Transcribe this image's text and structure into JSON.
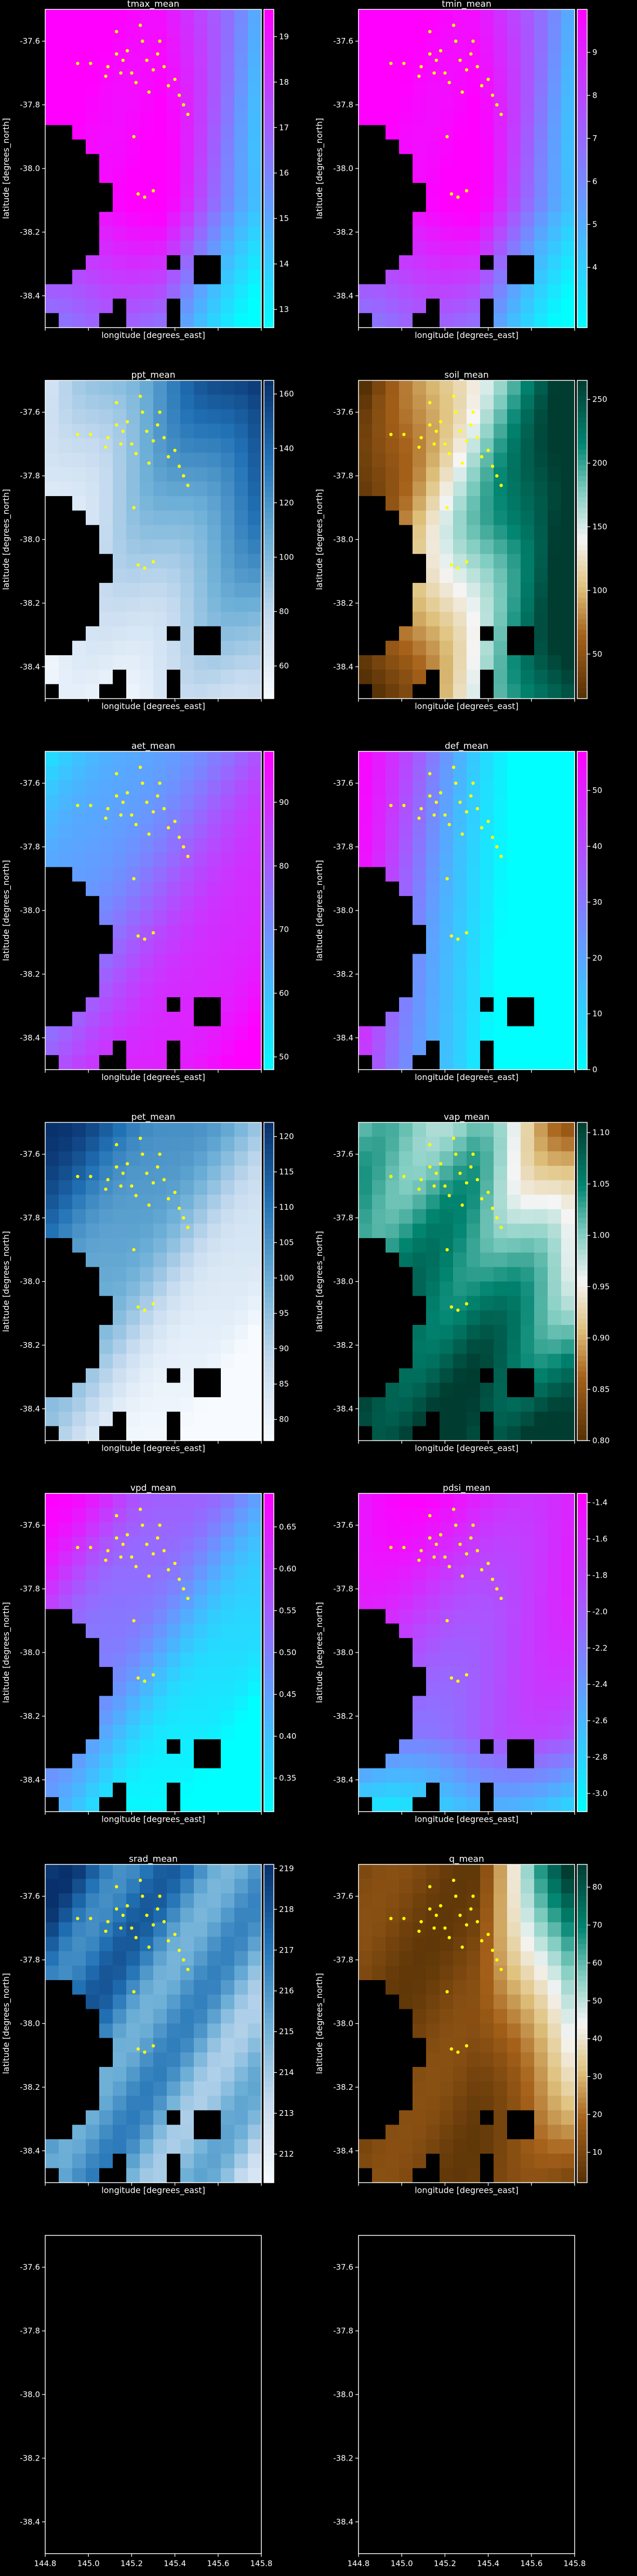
{
  "chart_data": {
    "type": "heatmap",
    "panel_rows": 7,
    "panel_cols": 2,
    "xlim": [
      144.8,
      145.8
    ],
    "ylim": [
      -38.5,
      -37.5
    ],
    "xticks": [
      "144.8",
      "145.0",
      "145.2",
      "145.4",
      "145.6",
      "145.8"
    ],
    "yticks": [
      "-37.6",
      "-37.8",
      "-38.0",
      "-38.2",
      "-38.4"
    ],
    "xlabel": "longitude [degrees_east]",
    "ylabel": "latitude [degrees_north]",
    "marker_color": "#ffff00",
    "nodata_color": "#000000",
    "panels": [
      {
        "title": "tmax_mean",
        "cmap": "cool",
        "vmin": 12.6,
        "vmax": 19.6,
        "cbar_ticks": [
          "13",
          "14",
          "15",
          "16",
          "17",
          "18",
          "19"
        ],
        "tick_values": [
          13,
          14,
          15,
          16,
          17,
          18,
          19
        ],
        "pattern": "coastal_gradient",
        "ylabel": true,
        "xlabel": true
      },
      {
        "title": "tmin_mean",
        "cmap": "cool",
        "vmin": 2.6,
        "vmax": 10.0,
        "cbar_ticks": [
          "4",
          "5",
          "6",
          "7",
          "8",
          "9"
        ],
        "tick_values": [
          4,
          5,
          6,
          7,
          8,
          9
        ],
        "pattern": "coastal_gradient",
        "ylabel": true,
        "xlabel": true
      },
      {
        "title": "ppt_mean",
        "cmap": "Blues",
        "vmin": 48,
        "vmax": 165,
        "cbar_ticks": [
          "60",
          "80",
          "100",
          "120",
          "140",
          "160"
        ],
        "tick_values": [
          60,
          80,
          100,
          120,
          140,
          160
        ],
        "pattern": "northeast_high",
        "ylabel": true,
        "xlabel": true
      },
      {
        "title": "soil_mean",
        "cmap": "BrBG",
        "vmin": 15,
        "vmax": 265,
        "cbar_ticks": [
          "50",
          "100",
          "150",
          "200",
          "250"
        ],
        "tick_values": [
          50,
          100,
          150,
          200,
          250
        ],
        "pattern": "east_high_blob",
        "ylabel": true,
        "xlabel": true
      },
      {
        "title": "aet_mean",
        "cmap": "cool",
        "vmin": 48,
        "vmax": 98,
        "cbar_ticks": [
          "50",
          "60",
          "70",
          "80",
          "90"
        ],
        "tick_values": [
          50,
          60,
          70,
          80,
          90
        ],
        "pattern": "southeast_high",
        "ylabel": true,
        "xlabel": true
      },
      {
        "title": "def_mean",
        "cmap": "cool",
        "vmin": 0,
        "vmax": 57,
        "cbar_ticks": [
          "0",
          "10",
          "20",
          "30",
          "40",
          "50"
        ],
        "tick_values": [
          0,
          10,
          20,
          30,
          40,
          50
        ],
        "pattern": "west_high",
        "ylabel": true,
        "xlabel": true
      },
      {
        "title": "pet_mean",
        "cmap": "Blues",
        "vmin": 77,
        "vmax": 122,
        "cbar_ticks": [
          "80",
          "85",
          "90",
          "95",
          "100",
          "105",
          "110",
          "115",
          "120"
        ],
        "tick_values": [
          80,
          85,
          90,
          95,
          100,
          105,
          110,
          115,
          120
        ],
        "pattern": "northwest_high",
        "ylabel": true,
        "xlabel": true
      },
      {
        "title": "vap_mean",
        "cmap": "BrBG",
        "vmin": 0.8,
        "vmax": 1.11,
        "cbar_ticks": [
          "0.80",
          "0.85",
          "0.90",
          "0.95",
          "1.00",
          "1.05",
          "1.10"
        ],
        "tick_values": [
          0.8,
          0.85,
          0.9,
          0.95,
          1.0,
          1.05,
          1.1
        ],
        "pattern": "vap",
        "ylabel": true,
        "xlabel": true
      },
      {
        "title": "vpd_mean",
        "cmap": "cool",
        "vmin": 0.31,
        "vmax": 0.69,
        "cbar_ticks": [
          "0.35",
          "0.40",
          "0.45",
          "0.50",
          "0.55",
          "0.60",
          "0.65"
        ],
        "tick_values": [
          0.35,
          0.4,
          0.45,
          0.5,
          0.55,
          0.6,
          0.65
        ],
        "pattern": "northwest_high",
        "ylabel": true,
        "xlabel": true
      },
      {
        "title": "pdsi_mean",
        "cmap": "cool",
        "vmin": -3.1,
        "vmax": -1.35,
        "cbar_ticks": [
          "-1.4",
          "-1.6",
          "-1.8",
          "-2.0",
          "-2.2",
          "-2.4",
          "-2.6",
          "-2.8",
          "-3.0"
        ],
        "tick_values": [
          -1.4,
          -1.6,
          -1.8,
          -2.0,
          -2.2,
          -2.4,
          -2.6,
          -2.8,
          -3.0
        ],
        "pattern": "pdsi",
        "ylabel": true,
        "xlabel": true
      },
      {
        "title": "srad_mean",
        "cmap": "Blues",
        "vmin": 211.3,
        "vmax": 219.1,
        "cbar_ticks": [
          "212",
          "213",
          "214",
          "215",
          "216",
          "217",
          "218",
          "219"
        ],
        "tick_values": [
          212,
          213,
          214,
          215,
          216,
          217,
          218,
          219
        ],
        "pattern": "srad",
        "ylabel": true,
        "xlabel": true
      },
      {
        "title": "q_mean",
        "cmap": "BrBG",
        "vmin": 2,
        "vmax": 86,
        "cbar_ticks": [
          "10",
          "20",
          "30",
          "40",
          "50",
          "60",
          "70",
          "80"
        ],
        "tick_values": [
          10,
          20,
          30,
          40,
          50,
          60,
          70,
          80
        ],
        "pattern": "q",
        "ylabel": true,
        "xlabel": true
      },
      {
        "title": "",
        "empty": true,
        "ylabel": false,
        "xlabel": false
      },
      {
        "title": "",
        "empty": true,
        "ylabel": false,
        "xlabel": false
      }
    ]
  }
}
